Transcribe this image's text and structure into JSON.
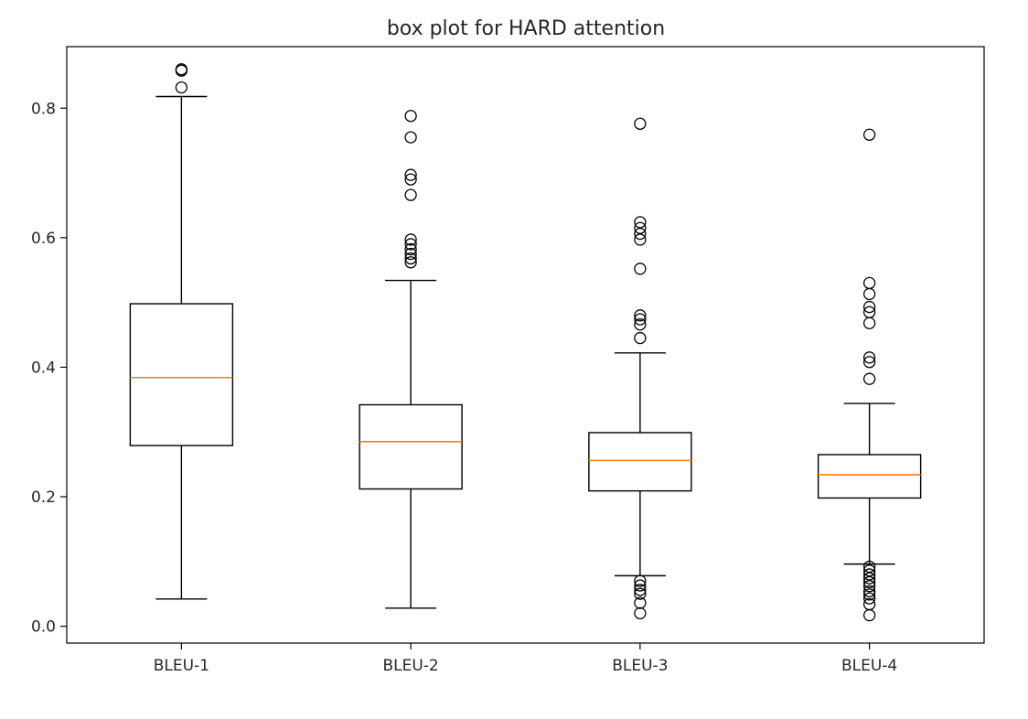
{
  "chart_data": {
    "type": "box",
    "title": "box plot for HARD attention",
    "xlabel": "",
    "ylabel": "",
    "ylim": [
      -0.026,
      0.895
    ],
    "yticks": [
      0.0,
      0.2,
      0.4,
      0.6,
      0.8
    ],
    "ytick_labels": [
      "0.0",
      "0.2",
      "0.4",
      "0.6",
      "0.8"
    ],
    "grid": false,
    "colors": {
      "box": "#000000",
      "median": "#ff7f0e",
      "flier": "#000000"
    },
    "series": [
      {
        "category": "BLEU-1",
        "whisker_low": 0.042,
        "q1": 0.279,
        "median": 0.384,
        "q3": 0.498,
        "whisker_high": 0.818,
        "outliers": [
          0.832,
          0.858,
          0.86
        ]
      },
      {
        "category": "BLEU-2",
        "whisker_low": 0.028,
        "q1": 0.212,
        "median": 0.285,
        "q3": 0.342,
        "whisker_high": 0.534,
        "outliers": [
          0.562,
          0.568,
          0.575,
          0.582,
          0.59,
          0.597,
          0.666,
          0.69,
          0.697,
          0.755,
          0.788
        ]
      },
      {
        "category": "BLEU-3",
        "whisker_low": 0.078,
        "q1": 0.209,
        "median": 0.256,
        "q3": 0.299,
        "whisker_high": 0.422,
        "outliers": [
          0.02,
          0.036,
          0.05,
          0.056,
          0.063,
          0.07,
          0.445,
          0.466,
          0.474,
          0.48,
          0.552,
          0.597,
          0.606,
          0.615,
          0.624,
          0.776
        ]
      },
      {
        "category": "BLEU-4",
        "whisker_low": 0.096,
        "q1": 0.198,
        "median": 0.234,
        "q3": 0.265,
        "whisker_high": 0.344,
        "outliers": [
          0.017,
          0.034,
          0.043,
          0.049,
          0.054,
          0.062,
          0.068,
          0.074,
          0.08,
          0.086,
          0.092,
          0.382,
          0.408,
          0.415,
          0.468,
          0.485,
          0.493,
          0.513,
          0.53,
          0.759
        ]
      }
    ]
  }
}
